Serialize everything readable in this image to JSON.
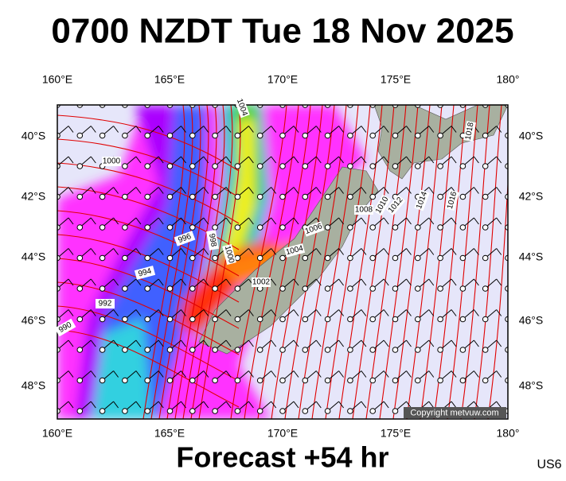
{
  "title": "0700 NZDT Tue 18 Nov 2025",
  "footer": "Forecast +54 hr",
  "code": "US6",
  "copyright": "Copyright metvuw.com",
  "lon_labels": [
    "160°E",
    "165°E",
    "170°E",
    "175°E",
    "180°"
  ],
  "lat_labels": [
    "40°S",
    "42°S",
    "44°S",
    "46°S",
    "48°S"
  ],
  "isobar_labels": [
    "1004",
    "1000",
    "996",
    "998",
    "1000",
    "994",
    "992",
    "990",
    "1002",
    "1004",
    "1006",
    "1008",
    "1010",
    "1012",
    "1014",
    "1016",
    "1018"
  ]
}
